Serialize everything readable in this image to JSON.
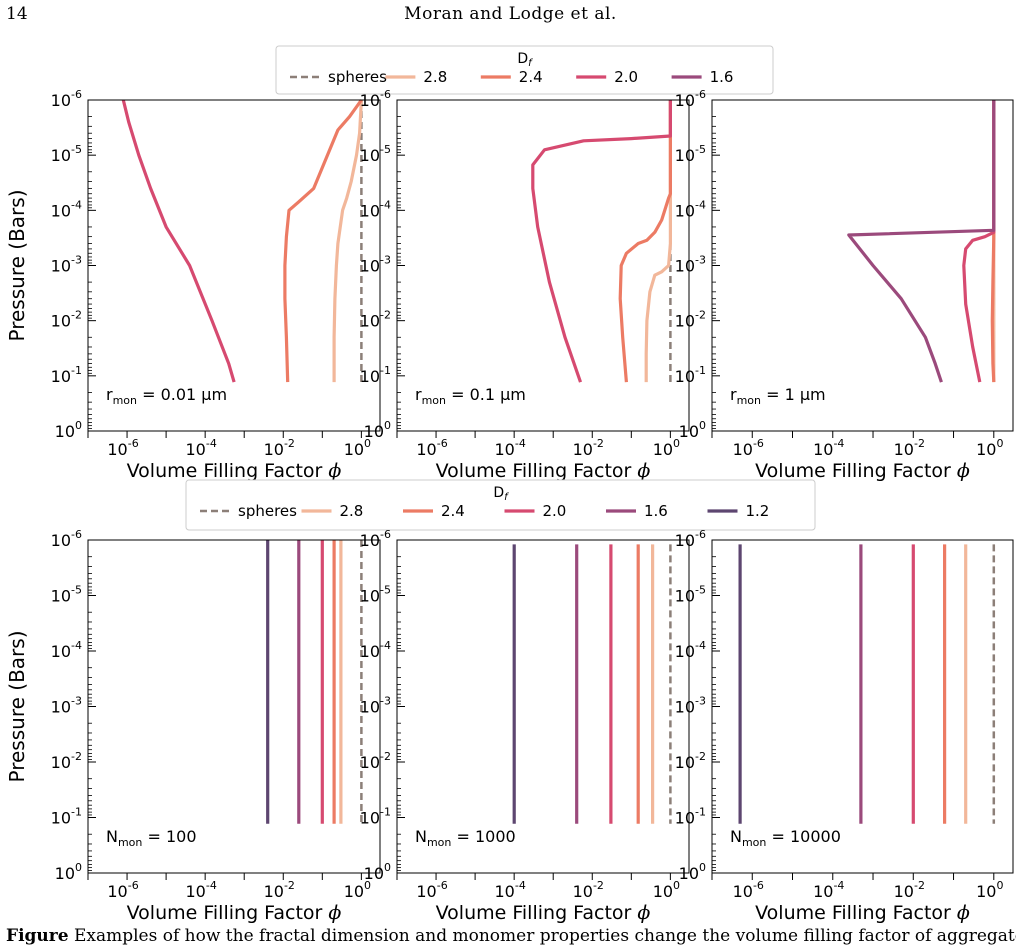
{
  "header": {
    "page_number": "14",
    "running_title": "Moran and Lodge et al."
  },
  "caption": {
    "label": "Figure",
    "text": "Examples of how the fractal dimension and monomer properties change the volume filling factor of aggregates"
  },
  "legend_title_base": "D",
  "legend_title_sub": "f",
  "colors": {
    "spheres": "#8c7f78",
    "2.8": "#f2b79a",
    "2.4": "#ec7b64",
    "2.0": "#d64a70",
    "1.6": "#9b4a7c",
    "1.2": "#5d4670"
  },
  "chart_data": [
    {
      "type": "line",
      "panel": "top-left",
      "xscale": "log",
      "yscale": "log",
      "xlim": [
        1e-07,
        3
      ],
      "ylim": [
        1,
        1e-06
      ],
      "xlabel": "Volume Filling Factor",
      "ylabel": "Pressure (Bars)",
      "annotation": {
        "sym": "r",
        "sub": "mon",
        "text": " = 0.01 μm"
      },
      "legend": [
        "spheres",
        "2.8",
        "2.4",
        "2.0",
        "1.6"
      ],
      "series": [
        {
          "name": "spheres",
          "dashed": true,
          "x": [
            1,
            1
          ],
          "y": [
            1e-06,
            0.13
          ]
        },
        {
          "name": "2.8",
          "x": [
            1,
            0.95,
            0.9,
            0.75,
            0.55,
            0.42,
            0.33,
            0.25,
            0.23,
            0.21,
            0.2,
            0.2
          ],
          "y": [
            1e-06,
            2e-06,
            4e-06,
            1e-05,
            3e-05,
            6e-05,
            0.0001,
            0.0004,
            0.001,
            0.004,
            0.02,
            0.13
          ]
        },
        {
          "name": "2.4",
          "x": [
            1,
            0.5,
            0.25,
            0.06,
            0.025,
            0.014,
            0.012,
            0.011,
            0.011,
            0.012,
            0.013
          ],
          "y": [
            1e-06,
            2e-06,
            3.5e-06,
            4e-05,
            7e-05,
            0.0001,
            0.0003,
            0.001,
            0.004,
            0.02,
            0.13
          ]
        },
        {
          "name": "2.0",
          "x": [
            8e-07,
            1.1e-06,
            2e-06,
            4e-06,
            1e-05,
            4e-05,
            0.00015,
            0.0004,
            0.00055
          ],
          "y": [
            1e-06,
            2.5e-06,
            1e-05,
            4e-05,
            0.0002,
            0.001,
            0.01,
            0.06,
            0.13
          ]
        }
      ]
    },
    {
      "type": "line",
      "panel": "top-middle",
      "xscale": "log",
      "yscale": "log",
      "xlim": [
        1e-07,
        3
      ],
      "ylim": [
        1,
        1e-06
      ],
      "xlabel": "Volume Filling Factor",
      "ylabel": "",
      "annotation": {
        "sym": "r",
        "sub": "mon",
        "text": " = 0.1 μm"
      },
      "series": [
        {
          "name": "spheres",
          "dashed": true,
          "x": [
            1,
            1
          ],
          "y": [
            1e-06,
            0.13
          ]
        },
        {
          "name": "2.8",
          "x": [
            1,
            1,
            1,
            0.9,
            0.6,
            0.4,
            0.3,
            0.25,
            0.24,
            0.24
          ],
          "y": [
            1e-06,
            4e-05,
            0.0004,
            0.001,
            0.0013,
            0.0015,
            0.003,
            0.01,
            0.04,
            0.13
          ]
        },
        {
          "name": "2.4",
          "x": [
            1,
            1,
            0.9,
            0.6,
            0.4,
            0.25,
            0.15,
            0.075,
            0.055,
            0.052,
            0.06,
            0.075
          ],
          "y": [
            1e-06,
            5e-05,
            6e-05,
            0.00015,
            0.00025,
            0.00035,
            0.0004,
            0.0006,
            0.001,
            0.004,
            0.02,
            0.13
          ]
        },
        {
          "name": "2.0",
          "x": [
            1,
            1,
            0.1,
            0.006,
            0.0006,
            0.0003,
            0.0003,
            0.0004,
            0.0008,
            0.002,
            0.005
          ],
          "y": [
            1e-06,
            4.5e-06,
            5e-06,
            5.5e-06,
            8e-06,
            1.5e-05,
            4e-05,
            0.0002,
            0.002,
            0.02,
            0.13
          ]
        }
      ]
    },
    {
      "type": "line",
      "panel": "top-right",
      "xscale": "log",
      "yscale": "log",
      "xlim": [
        1e-07,
        3
      ],
      "ylim": [
        1,
        1e-06
      ],
      "xlabel": "Volume Filling Factor",
      "ylabel": "",
      "annotation": {
        "sym": "r",
        "sub": "mon",
        "text": " = 1 μm"
      },
      "series": [
        {
          "name": "spheres",
          "dashed": true,
          "x": [
            1,
            1
          ],
          "y": [
            1e-06,
            0.13
          ]
        },
        {
          "name": "2.8",
          "x": [
            1,
            1,
            1,
            1
          ],
          "y": [
            1e-06,
            0.0002,
            0.01,
            0.13
          ]
        },
        {
          "name": "2.4",
          "x": [
            1,
            1,
            0.95,
            0.92,
            0.95,
            1
          ],
          "y": [
            1e-06,
            0.0003,
            0.002,
            0.01,
            0.06,
            0.13
          ]
        },
        {
          "name": "2.0",
          "x": [
            1,
            1,
            0.6,
            0.3,
            0.2,
            0.18,
            0.2,
            0.3,
            0.45
          ],
          "y": [
            1e-06,
            0.00025,
            0.0003,
            0.00035,
            0.0005,
            0.001,
            0.005,
            0.03,
            0.13
          ]
        },
        {
          "name": "1.6",
          "x": [
            1,
            1,
            0.00025,
            0.001,
            0.005,
            0.02,
            0.035,
            0.05
          ],
          "y": [
            1e-06,
            0.00023,
            0.00028,
            0.001,
            0.004,
            0.02,
            0.06,
            0.13
          ]
        }
      ]
    },
    {
      "type": "line",
      "panel": "bottom-left",
      "xscale": "log",
      "yscale": "log",
      "xlim": [
        1e-07,
        3
      ],
      "ylim": [
        1,
        1e-06
      ],
      "xlabel": "Volume Filling Factor",
      "ylabel": "Pressure (Bars)",
      "annotation": {
        "sym": "N",
        "sub": "mon",
        "text": " = 100"
      },
      "legend": [
        "spheres",
        "2.8",
        "2.4",
        "2.0",
        "1.6",
        "1.2"
      ],
      "series": [
        {
          "name": "spheres",
          "dashed": true,
          "x": [
            1,
            1
          ],
          "y": [
            1e-06,
            0.13
          ]
        },
        {
          "name": "2.8",
          "x": [
            0.3,
            0.3
          ],
          "y": [
            1e-06,
            0.13
          ]
        },
        {
          "name": "2.4",
          "x": [
            0.2,
            0.2
          ],
          "y": [
            1e-06,
            0.13
          ]
        },
        {
          "name": "2.0",
          "x": [
            0.1,
            0.1
          ],
          "y": [
            1e-06,
            0.13
          ]
        },
        {
          "name": "1.6",
          "x": [
            0.025,
            0.025
          ],
          "y": [
            1e-06,
            0.13
          ]
        },
        {
          "name": "1.2",
          "x": [
            0.004,
            0.004
          ],
          "y": [
            1e-06,
            0.13
          ]
        }
      ]
    },
    {
      "type": "line",
      "panel": "bottom-middle",
      "xscale": "log",
      "yscale": "log",
      "xlim": [
        1e-07,
        3
      ],
      "ylim": [
        1,
        1e-06
      ],
      "xlabel": "Volume Filling Factor",
      "ylabel": "",
      "annotation": {
        "sym": "N",
        "sub": "mon",
        "text": " = 1000"
      },
      "series": [
        {
          "name": "spheres",
          "dashed": true,
          "x": [
            1,
            1
          ],
          "y": [
            1.2e-06,
            0.13
          ]
        },
        {
          "name": "2.8",
          "x": [
            0.35,
            0.35
          ],
          "y": [
            1.2e-06,
            0.13
          ]
        },
        {
          "name": "2.4",
          "x": [
            0.15,
            0.15
          ],
          "y": [
            1.2e-06,
            0.13
          ]
        },
        {
          "name": "2.0",
          "x": [
            0.03,
            0.03
          ],
          "y": [
            1.2e-06,
            0.13
          ]
        },
        {
          "name": "1.6",
          "x": [
            0.004,
            0.004
          ],
          "y": [
            1.2e-06,
            0.13
          ]
        },
        {
          "name": "1.2",
          "x": [
            0.0001,
            0.0001
          ],
          "y": [
            1.2e-06,
            0.13
          ]
        }
      ]
    },
    {
      "type": "line",
      "panel": "bottom-right",
      "xscale": "log",
      "yscale": "log",
      "xlim": [
        1e-07,
        3
      ],
      "ylim": [
        1,
        1e-06
      ],
      "xlabel": "Volume Filling Factor",
      "ylabel": "",
      "annotation": {
        "sym": "N",
        "sub": "mon",
        "text": " = 10000"
      },
      "series": [
        {
          "name": "spheres",
          "dashed": true,
          "x": [
            1,
            1
          ],
          "y": [
            1.2e-06,
            0.13
          ]
        },
        {
          "name": "2.8",
          "x": [
            0.2,
            0.2
          ],
          "y": [
            1.2e-06,
            0.13
          ]
        },
        {
          "name": "2.4",
          "x": [
            0.06,
            0.06
          ],
          "y": [
            1.2e-06,
            0.13
          ]
        },
        {
          "name": "2.0",
          "x": [
            0.01,
            0.01
          ],
          "y": [
            1.2e-06,
            0.13
          ]
        },
        {
          "name": "1.6",
          "x": [
            0.0005,
            0.0005
          ],
          "y": [
            1.2e-06,
            0.13
          ]
        },
        {
          "name": "1.2",
          "x": [
            5e-07,
            5e-07
          ],
          "y": [
            1.2e-06,
            0.13
          ]
        }
      ]
    }
  ]
}
